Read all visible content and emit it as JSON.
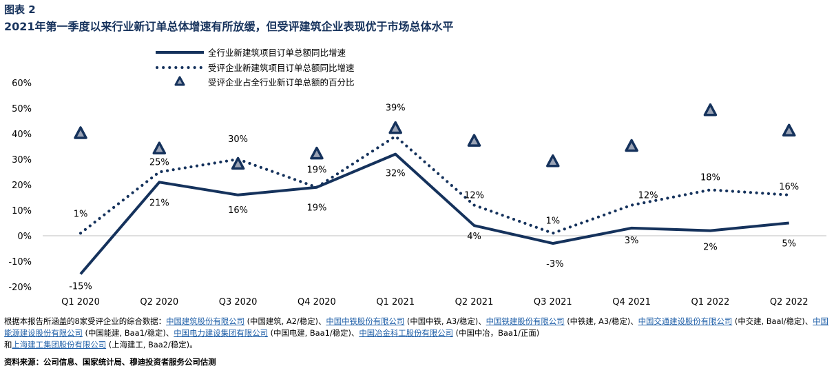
{
  "figure_label": "图表 2",
  "figure_title": "2021年第一季度以来行业新订单总体增速有所放缓，但受评建筑企业表现优于市场总体水平",
  "chart_data": {
    "type": "line",
    "categories": [
      "Q1 2020",
      "Q2 2020",
      "Q3 2020",
      "Q4 2020",
      "Q1 2021",
      "Q2 2021",
      "Q3 2021",
      "Q4 2021",
      "Q1 2022",
      "Q2 2022"
    ],
    "y_ticks": [
      "60%",
      "50%",
      "40%",
      "30%",
      "20%",
      "10%",
      "0%",
      "-10%",
      "-20%"
    ],
    "ylim": [
      -20,
      60
    ],
    "grid": false,
    "legend_position": "top-center",
    "series": [
      {
        "name": "全行业新建筑项目订单总额同比增速",
        "style": "solid",
        "color": "#15325c",
        "values": [
          -15,
          21,
          16,
          19,
          32,
          4,
          -3,
          3,
          2,
          5
        ],
        "labels": [
          "-15%",
          "21%",
          "16%",
          "19%",
          "32%",
          "4%",
          "-3%",
          "3%",
          "2%",
          "5%"
        ]
      },
      {
        "name": "受评企业新建筑项目订单总额同比增速",
        "style": "dotted",
        "color": "#15325c",
        "values": [
          1,
          25,
          30,
          19,
          39,
          12,
          1,
          12,
          18,
          16
        ],
        "labels": [
          "1%",
          "25%",
          "30%",
          "19%",
          "39%",
          "12%",
          "1%",
          "12%",
          "18%",
          "16%"
        ]
      },
      {
        "name": "受评企业占全行业新订单总额的百分比",
        "style": "triangle-marker",
        "color": "#15325c",
        "fill": "#9aa3b5",
        "values": [
          40,
          34,
          28,
          32,
          42,
          37,
          29,
          35,
          49,
          41
        ]
      }
    ]
  },
  "note": {
    "prefix": "根据本报告所涵盖的8家受评企业的综合数据：",
    "companies": [
      {
        "name": "中国建筑股份有限公司",
        "detail": " (中国建筑, A2/稳定)、"
      },
      {
        "name": "中国中铁股份有限公司",
        "detail": " (中国中铁, A3/稳定)、"
      },
      {
        "name": "中国铁建股份有限公司",
        "detail": " (中铁建, A3/稳定)、"
      },
      {
        "name": "中国交通建设股份有限公司",
        "detail": " (中交建, Baal/稳定)、"
      },
      {
        "name": "中国能源建设股份有限公司",
        "detail": " (中国能建, Baa1/稳定)、"
      },
      {
        "name": "中国电力建设集团有限公司",
        "detail": " (中国电建, Baa1/稳定)、"
      },
      {
        "name": "中国冶金科工股份有限公司",
        "detail": " (中国中冶，Baa1/正面)"
      }
    ],
    "last_prefix": "和",
    "last_company": {
      "name": "上海建工集团股份有限公司",
      "detail": " (上海建工, Baa2/稳定)。"
    }
  },
  "source": "资料来源：公司信息、国家统计局、穆迪投资者服务公司估测"
}
